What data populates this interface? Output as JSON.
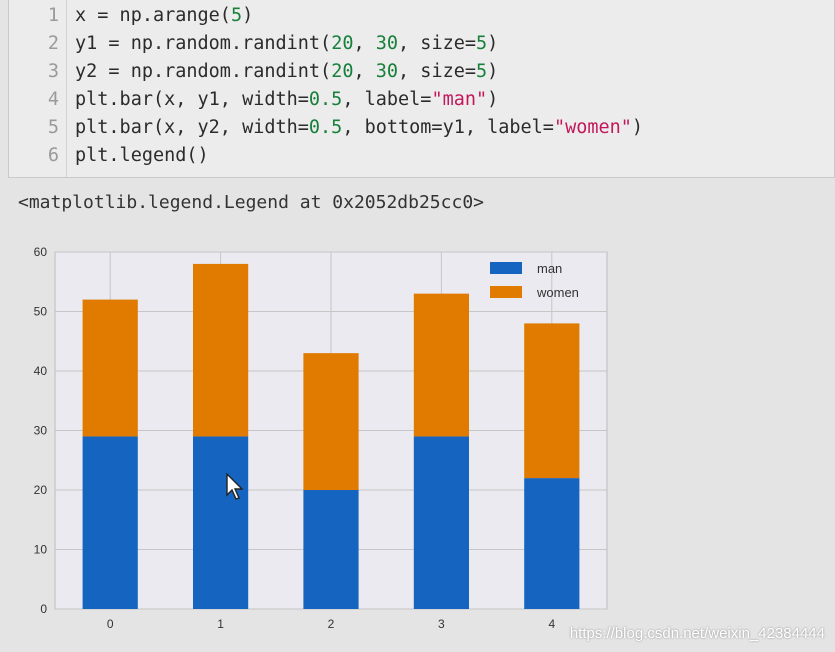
{
  "code_lines": [
    {
      "n": "1",
      "parts": [
        [
          "x = np.arange(",
          "t"
        ],
        [
          "5",
          "num"
        ],
        [
          ")",
          "t"
        ]
      ]
    },
    {
      "n": "2",
      "parts": [
        [
          "y1 = np.random.randint(",
          "t"
        ],
        [
          "20",
          "num"
        ],
        [
          ", ",
          "t"
        ],
        [
          "30",
          "num"
        ],
        [
          ", size=",
          "t"
        ],
        [
          "5",
          "num"
        ],
        [
          ")",
          "t"
        ]
      ]
    },
    {
      "n": "3",
      "parts": [
        [
          "y2 = np.random.randint(",
          "t"
        ],
        [
          "20",
          "num"
        ],
        [
          ", ",
          "t"
        ],
        [
          "30",
          "num"
        ],
        [
          ", size=",
          "t"
        ],
        [
          "5",
          "num"
        ],
        [
          ")",
          "t"
        ]
      ]
    },
    {
      "n": "4",
      "parts": [
        [
          "plt.bar(x, y1, width=",
          "t"
        ],
        [
          "0.5",
          "num"
        ],
        [
          ", label=",
          "t"
        ],
        [
          "\"man\"",
          "str"
        ],
        [
          ")",
          "t"
        ]
      ]
    },
    {
      "n": "5",
      "parts": [
        [
          "plt.bar(x, y2, width=",
          "t"
        ],
        [
          "0.5",
          "num"
        ],
        [
          ", bottom=y1, label=",
          "t"
        ],
        [
          "\"women\"",
          "str"
        ],
        [
          ")",
          "t"
        ]
      ]
    },
    {
      "n": "6",
      "parts": [
        [
          "plt.legend()",
          "t"
        ]
      ]
    }
  ],
  "output_text": "<matplotlib.legend.Legend at 0x2052db25cc0>",
  "watermark": "https://blog.csdn.net/weixin_42384444",
  "chart_data": {
    "type": "bar",
    "stacked": true,
    "categories": [
      "0",
      "1",
      "2",
      "3",
      "4"
    ],
    "series": [
      {
        "name": "man",
        "values": [
          29,
          29,
          20,
          29,
          22
        ],
        "color": "#1565c0"
      },
      {
        "name": "women",
        "values": [
          23,
          29,
          23,
          24,
          26
        ],
        "color": "#e07b00"
      }
    ],
    "yticks": [
      "0",
      "10",
      "20",
      "30",
      "40",
      "50",
      "60"
    ],
    "ylim": [
      0,
      60
    ],
    "xlim": [
      -0.5,
      4.5
    ],
    "grid": true,
    "legend": "top-right"
  }
}
